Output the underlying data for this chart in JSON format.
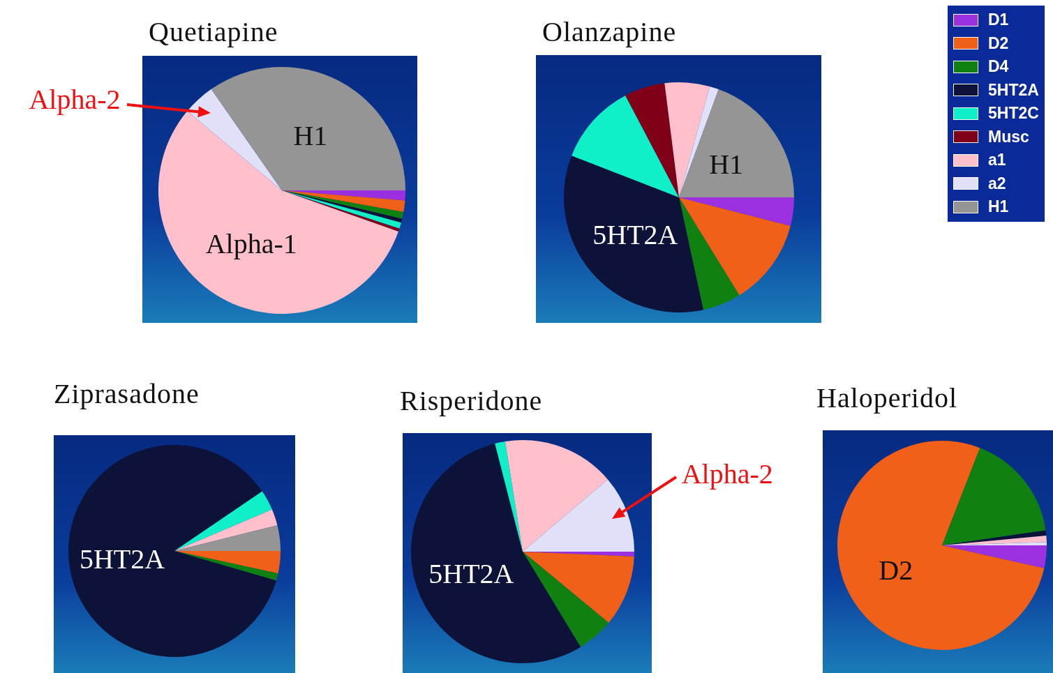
{
  "chart_data": [
    {
      "type": "pie",
      "title": "Quetiapine",
      "categories": [
        "D1",
        "D2",
        "D4",
        "5HT2A",
        "5HT2C",
        "Musc",
        "a1",
        "a2",
        "H1"
      ],
      "values": [
        1.3,
        1.5,
        0.9,
        0.5,
        0.8,
        0.4,
        55.7,
        4.2,
        34.7
      ],
      "colors": [
        "#9b30e0",
        "#f06018",
        "#108010",
        "#0c1238",
        "#10f0c8",
        "#800018",
        "#ffc0cb",
        "#e0e0f8",
        "#959595"
      ],
      "legend": "top right",
      "annotations": [
        {
          "text": "H1",
          "x": "H1"
        },
        {
          "text": "Alpha-1",
          "x": "a1"
        },
        {
          "text": "Alpha-2",
          "x": "a2"
        }
      ]
    },
    {
      "type": "pie",
      "title": "Olanzapine",
      "categories": [
        null,
        null,
        null,
        null,
        null,
        null,
        null,
        null,
        null
      ],
      "values": [
        4,
        12.2,
        5.4,
        34.3,
        11.4,
        5.7,
        6.3,
        1.3,
        19.4
      ],
      "colors": [
        "#9b30e0",
        "#f06018",
        "#108010",
        "#0c1238",
        "#10f0c8",
        "#800018",
        "#ffc0cb",
        "#e0e0f8",
        "#959595"
      ],
      "annotations": [
        {
          "text": "H1",
          "x": "H1"
        },
        {
          "text": "5HT2A",
          "x": "5HT2A"
        }
      ]
    },
    {
      "type": "pie",
      "title": "Ziprasadone",
      "categories": [
        null,
        null,
        null,
        null,
        null,
        null,
        null,
        null,
        null
      ],
      "values": [
        0,
        3.4,
        1.1,
        86,
        3.1,
        0,
        2.5,
        0,
        3.9
      ],
      "colors": [
        "#9b30e0",
        "#f06018",
        "#108010",
        "#0c1238",
        "#10f0c8",
        "#800018",
        "#ffc0cb",
        "#e0e0f8",
        "#959595"
      ],
      "annotations": [
        {
          "text": "5HT2A",
          "x": "5HT2A"
        }
      ]
    },
    {
      "type": "pie",
      "title": "Risperidone",
      "categories": [
        null,
        null,
        null,
        null,
        null,
        null,
        null,
        null,
        null
      ],
      "values": [
        0.7,
        10.3,
        5.3,
        54.7,
        1.5,
        0,
        16.3,
        11.2,
        0
      ],
      "colors": [
        "#9b30e0",
        "#f06018",
        "#108010",
        "#0c1238",
        "#10f0c8",
        "#800018",
        "#ffc0cb",
        "#e0e0f8",
        "#959595"
      ],
      "annotations": [
        {
          "text": "5HT2A",
          "x": "5HT2A"
        },
        {
          "text": "Alpha-2",
          "x": "a2"
        }
      ]
    },
    {
      "type": "pie",
      "title": "Haloperidol",
      "categories": [
        null,
        null,
        null,
        null,
        null,
        null,
        null,
        null,
        null
      ],
      "values": [
        3.5,
        77.4,
        16.8,
        0.8,
        0,
        0,
        1.0,
        0.5,
        0
      ],
      "colors": [
        "#9b30e0",
        "#f06018",
        "#108010",
        "#0c1238",
        "#10f0c8",
        "#800018",
        "#ffc0cb",
        "#e0e0f8",
        "#959595"
      ],
      "annotations": [
        {
          "text": "D2",
          "x": "D2"
        }
      ]
    }
  ]
}
